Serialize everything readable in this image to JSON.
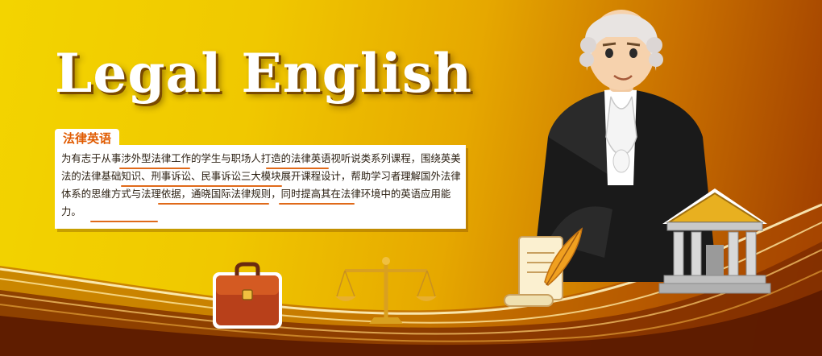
{
  "banner": {
    "title": "Legal English",
    "tag": "法律英语",
    "description": "为有志于从事涉外型法律工作的学生与职场人打造的法律英语视听说类系列课程，围绕英美法的法律基础知识、刑事诉讼、民事诉讼三大模块展开课程设计，帮助学习者理解国外法律体系的思维方式与法理依据，通晓国际法律规则，同时提高其在法律环境中的英语应用能力。"
  },
  "icons": [
    "barrister-figure",
    "briefcase-icon",
    "scales-icon",
    "scroll-quill-icon",
    "courthouse-icon"
  ],
  "colors": {
    "accent": "#e05a00",
    "gold": "#f3d400",
    "brown": "#9c3a00"
  }
}
